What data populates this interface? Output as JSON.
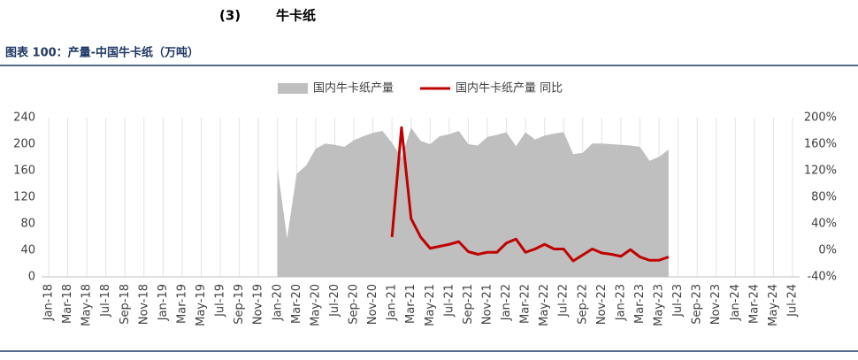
{
  "header": {
    "number": "(3)",
    "title": "牛卡纸"
  },
  "chart_data": {
    "type": "area-line",
    "title": "图表 100：产量-中国牛卡纸（万吨）",
    "categories": [
      "Jan-18",
      null,
      "Mar-18",
      null,
      "May-18",
      null,
      "Jul-18",
      null,
      "Sep-18",
      null,
      "Nov-18",
      null,
      "Jan-19",
      null,
      "Mar-19",
      null,
      "May-19",
      null,
      "Jul-19",
      null,
      "Sep-19",
      null,
      "Nov-19",
      null,
      "Jan-20",
      null,
      "Mar-20",
      null,
      "May-20",
      null,
      "Jul-20",
      null,
      "Sep-20",
      null,
      "Nov-20",
      null,
      "Jan-21",
      null,
      "Mar-21",
      null,
      "May-21",
      null,
      "Jul-21",
      null,
      "Sep-21",
      null,
      "Nov-21",
      null,
      "Jan-22",
      null,
      "Mar-22",
      null,
      "May-22",
      null,
      "Jul-22",
      null,
      "Sep-22",
      null,
      "Nov-22",
      null,
      "Jan-23",
      null,
      "Mar-23",
      null,
      "May-23",
      null,
      "Jul-23",
      null,
      "Sep-23",
      null,
      "Nov-23",
      null,
      "Jan-24",
      null,
      "Mar-24",
      null,
      "May-24",
      null,
      "Jul-24"
    ],
    "series": [
      {
        "name": "国内牛卡纸产量",
        "color": "#bfbfbf",
        "kind": "area",
        "values": [
          null,
          null,
          null,
          null,
          null,
          null,
          null,
          null,
          null,
          null,
          null,
          null,
          null,
          null,
          null,
          null,
          null,
          null,
          null,
          null,
          null,
          null,
          null,
          null,
          163,
          58,
          155,
          168,
          193,
          201,
          199,
          196,
          206,
          212,
          217,
          220,
          202,
          180,
          225,
          205,
          200,
          212,
          215,
          220,
          200,
          198,
          211,
          214,
          218,
          197,
          218,
          207,
          213,
          216,
          218,
          185,
          187,
          201,
          201,
          200,
          199,
          198,
          196,
          175,
          181,
          192,
          null,
          null,
          null,
          null,
          null,
          null,
          null,
          null,
          null,
          null,
          null,
          null,
          null
        ]
      },
      {
        "name": "国内牛卡纸产量 同比",
        "color": "#c00000",
        "kind": "line",
        "axis": "y2",
        "values": [
          null,
          null,
          null,
          null,
          null,
          null,
          null,
          null,
          null,
          null,
          null,
          null,
          null,
          null,
          null,
          null,
          null,
          null,
          null,
          null,
          null,
          null,
          null,
          null,
          null,
          null,
          null,
          null,
          null,
          null,
          null,
          null,
          null,
          null,
          null,
          null,
          20,
          185,
          48,
          20,
          3,
          6,
          9,
          13,
          -2,
          -6,
          -3,
          -3,
          11,
          17,
          -3,
          2,
          9,
          2,
          2,
          -16,
          -7,
          2,
          -4,
          -6,
          -9,
          1,
          -10,
          -15,
          -15,
          -10,
          null,
          null,
          null,
          null,
          null,
          null,
          null,
          null,
          null,
          null,
          null,
          null,
          null
        ]
      }
    ],
    "ylim": [
      0,
      240
    ],
    "yticks": [
      0,
      40,
      80,
      120,
      160,
      200,
      240
    ],
    "y2lim": [
      -40,
      200
    ],
    "y2ticks": [
      {
        "value": -40,
        "label": "-40%"
      },
      {
        "value": 0,
        "label": "0%"
      },
      {
        "value": 40,
        "label": "40%"
      },
      {
        "value": 80,
        "label": "80%"
      },
      {
        "value": 120,
        "label": "120%"
      },
      {
        "value": 160,
        "label": "160%"
      },
      {
        "value": 200,
        "label": "200%"
      }
    ],
    "grid": true,
    "legend": "top"
  }
}
